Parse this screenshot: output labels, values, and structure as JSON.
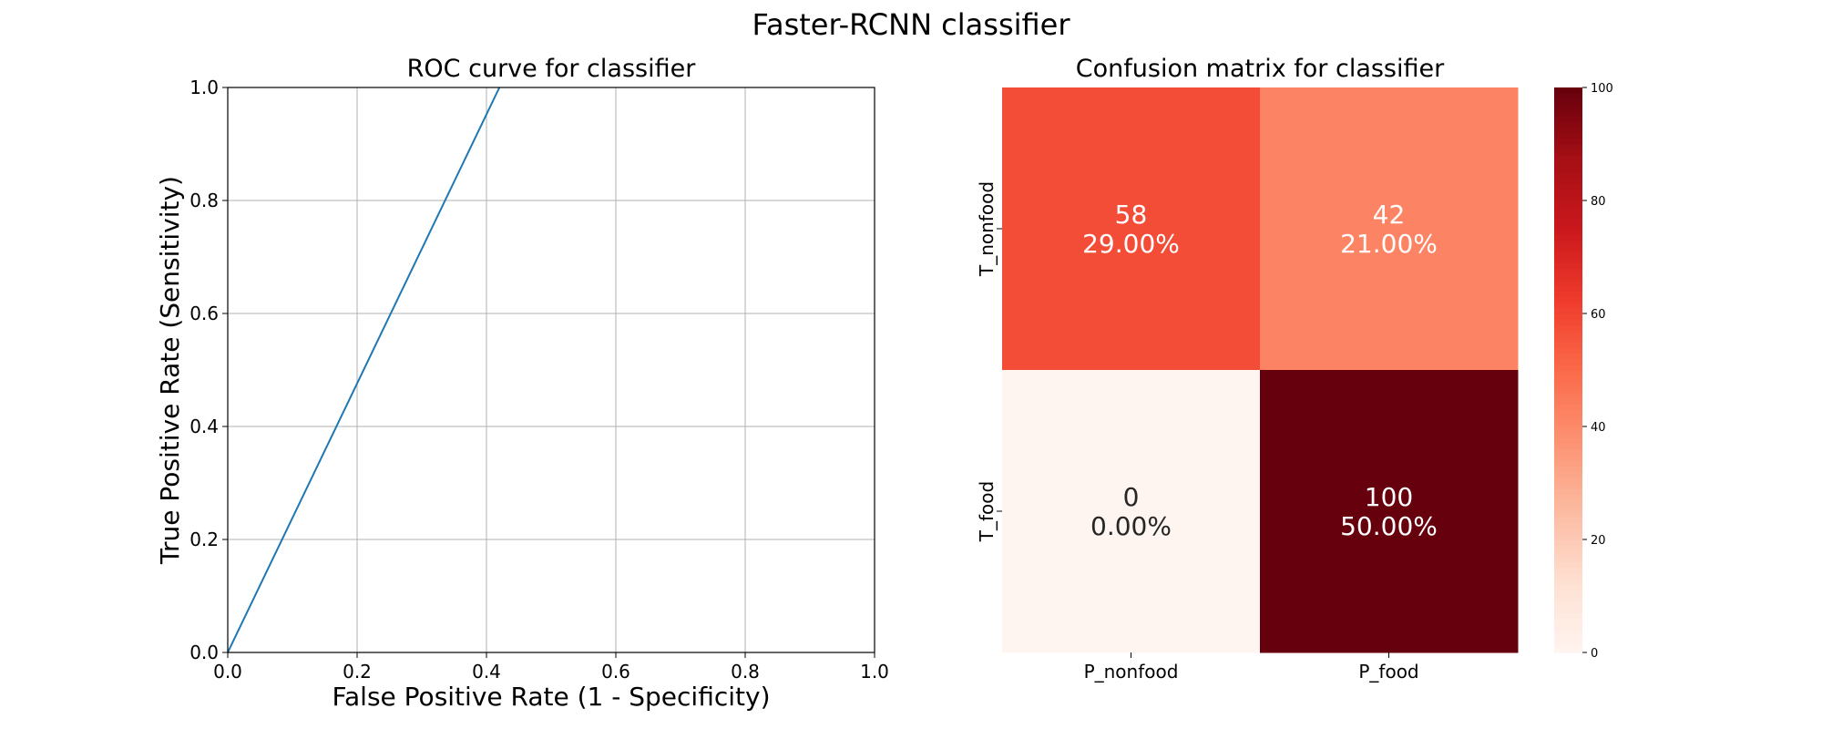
{
  "figure": {
    "title": "Faster-RCNN classifier"
  },
  "chart_data": [
    {
      "type": "line",
      "title": "ROC curve for classifier",
      "xlabel": "False Positive Rate (1 - Specificity)",
      "ylabel": "True Positive Rate (Sensitivity)",
      "xlim": [
        0,
        1
      ],
      "ylim": [
        0,
        1
      ],
      "xticks": [
        "0.0",
        "0.2",
        "0.4",
        "0.6",
        "0.8",
        "1.0"
      ],
      "yticks": [
        "0.0",
        "0.2",
        "0.4",
        "0.6",
        "0.8",
        "1.0"
      ],
      "grid": true,
      "series": [
        {
          "x": [
            0.0,
            0.42
          ],
          "y": [
            0.0,
            1.0
          ],
          "color": "#1f77b4"
        }
      ]
    },
    {
      "type": "heatmap",
      "title": "Confusion matrix for classifier",
      "x_categories": [
        "P_nonfood",
        "P_food"
      ],
      "y_categories": [
        "T_nonfood",
        "T_food"
      ],
      "values": [
        [
          58,
          42
        ],
        [
          0,
          100
        ]
      ],
      "cell_labels": [
        [
          "58\n29.00%",
          "42\n21.00%"
        ],
        [
          "0\n0.00%",
          "100\n50.00%"
        ]
      ],
      "colormap": "Reds",
      "colorbar": {
        "min": 0,
        "max": 100,
        "ticks": [
          "0",
          "20",
          "40",
          "60",
          "80",
          "100"
        ]
      }
    }
  ]
}
